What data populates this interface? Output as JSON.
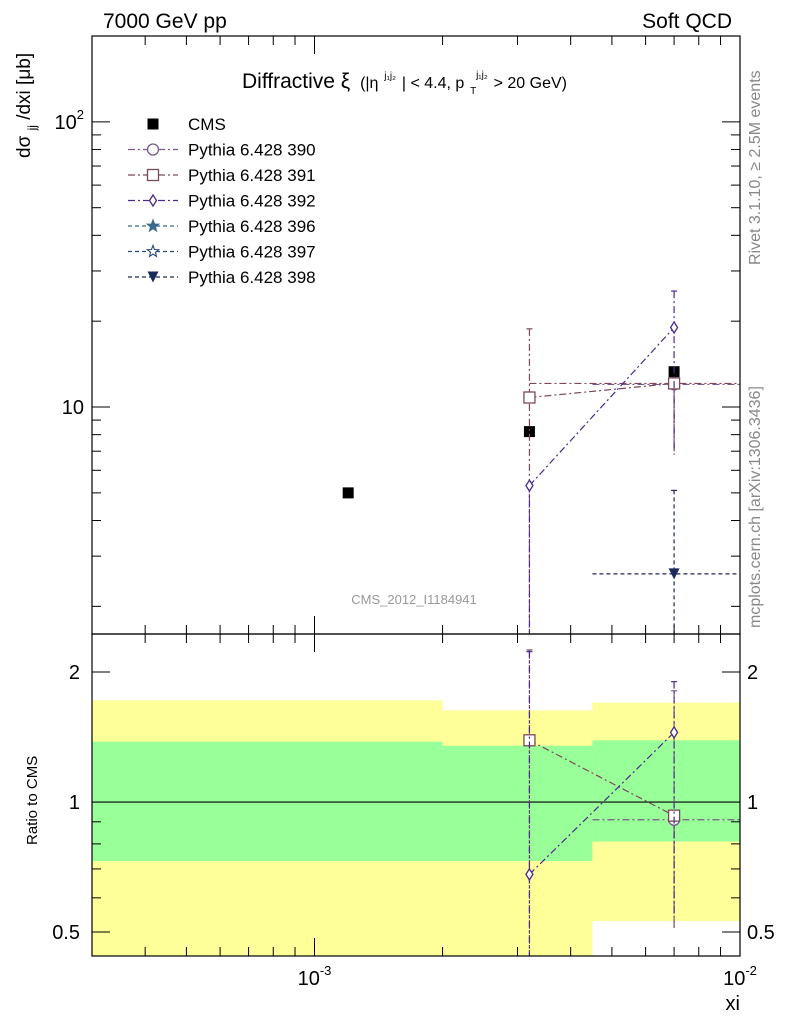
{
  "header": {
    "energy_label": "7000 GeV pp",
    "category_label": "Soft QCD"
  },
  "side_labels": {
    "rivet": "Rivet 3.1.10, ≥ 2.5M events",
    "mcplots": "mcplots.cern.ch [arXiv:1306.3436]"
  },
  "analysis_label": "CMS_2012_I1184941",
  "chart_data": [
    {
      "type": "scatter",
      "title_main": "Diffractive ξ",
      "title_cut_a": "(|η",
      "title_cut_a_sup": "j₁j₂",
      "title_cut_b": "| < 4.4, p",
      "title_cut_b_sub": "T",
      "title_cut_b_sup": "j₁j₂",
      "title_cut_c": " > 20 GeV)",
      "ylabel": "dσjj/dxi [μb]",
      "ylabel_main": "dσ",
      "ylabel_sub": "jj",
      "ylabel_tail": "/dxi [μb]",
      "xscale": "log",
      "yscale": "log",
      "xlim": [
        0.0003,
        0.01
      ],
      "ylim": [
        1.6,
        200
      ],
      "x_tick_labels": [
        "10^-3",
        "10^-2"
      ],
      "y_tick_labels": [
        "10",
        "10^2"
      ],
      "legend_position": "top-left",
      "series": [
        {
          "name": "CMS",
          "color": "#000000",
          "marker": "filled-square",
          "line": "none",
          "x": [
            0.0012,
            0.0032,
            0.007
          ],
          "y": [
            5.0,
            8.2,
            13.3
          ]
        },
        {
          "name": "Pythia 6.428 390",
          "color": "#7a5a8c",
          "marker": "open-circle",
          "line": "dashdot",
          "x": [
            0.007
          ],
          "y": [
            12.0
          ],
          "err_low": [
            5.0
          ],
          "err_high": [
            0.0
          ],
          "x_err": [
            [
              0.0045,
              0.01
            ]
          ]
        },
        {
          "name": "Pythia 6.428 391",
          "color": "#7a4a5a",
          "marker": "open-square",
          "line": "dashdot",
          "x": [
            0.0032,
            0.007
          ],
          "y": [
            10.8,
            12.1
          ],
          "err_low": [
            10.5,
            5.3
          ],
          "err_high": [
            8.0,
            0.0
          ],
          "x_err": [
            [
              0.0032,
              0.0032
            ],
            [
              0.0032,
              0.01
            ]
          ]
        },
        {
          "name": "Pythia 6.428 392",
          "color": "#4a2a8c",
          "marker": "open-diamond",
          "line": "dashdot",
          "x": [
            0.0032,
            0.007
          ],
          "y": [
            5.3,
            19.0
          ],
          "err_low": [
            5.0,
            12.0
          ],
          "err_high": [
            0.0,
            6.5
          ]
        },
        {
          "name": "Pythia 6.428 396",
          "color": "#3a6a8a",
          "marker": "filled-star",
          "line": "dashed",
          "x": [],
          "y": []
        },
        {
          "name": "Pythia 6.428 397",
          "color": "#2a4a7a",
          "marker": "open-star",
          "line": "dashed",
          "x": [],
          "y": []
        },
        {
          "name": "Pythia 6.428 398",
          "color": "#1a2a5a",
          "marker": "filled-triangle-down",
          "line": "dashed",
          "x": [
            0.007
          ],
          "y": [
            2.6
          ],
          "err_low": [
            2.6
          ],
          "err_high": [
            2.5
          ],
          "x_err": [
            [
              0.0045,
              0.01
            ]
          ]
        }
      ]
    },
    {
      "type": "scatter",
      "ylabel": "Ratio to CMS",
      "xlabel": "xi",
      "xscale": "log",
      "yscale": "log",
      "xlim": [
        0.0003,
        0.01
      ],
      "ylim": [
        0.44,
        2.45
      ],
      "y_tick_labels": [
        "0.5",
        "1",
        "2"
      ],
      "bands": [
        {
          "x": [
            0.0003,
            0.002
          ],
          "green": [
            0.73,
            1.38
          ],
          "yellow": [
            0.3,
            1.72
          ]
        },
        {
          "x": [
            0.002,
            0.0045
          ],
          "green": [
            0.73,
            1.35
          ],
          "yellow": [
            0.3,
            1.63
          ]
        },
        {
          "x": [
            0.0045,
            0.01
          ],
          "green": [
            0.81,
            1.39
          ],
          "yellow": [
            0.53,
            1.7
          ]
        }
      ],
      "series": [
        {
          "name": "Pythia 6.428 390",
          "marker": "open-circle",
          "x": [
            0.007
          ],
          "y": [
            0.91
          ],
          "err_low": [
            0.4
          ],
          "err_high": [
            0.9
          ]
        },
        {
          "name": "Pythia 6.428 391",
          "marker": "open-square",
          "x": [
            0.0032,
            0.007
          ],
          "y": [
            1.39,
            0.93
          ],
          "err_low": [
            1.0,
            0.42
          ],
          "err_high": [
            0.86,
            0.0
          ]
        },
        {
          "name": "Pythia 6.428 392",
          "marker": "open-diamond",
          "x": [
            0.0032,
            0.007
          ],
          "y": [
            0.68,
            1.45
          ],
          "err_low": [
            0.3,
            0.9
          ],
          "err_high": [
            1.55,
            0.45
          ]
        }
      ]
    }
  ]
}
